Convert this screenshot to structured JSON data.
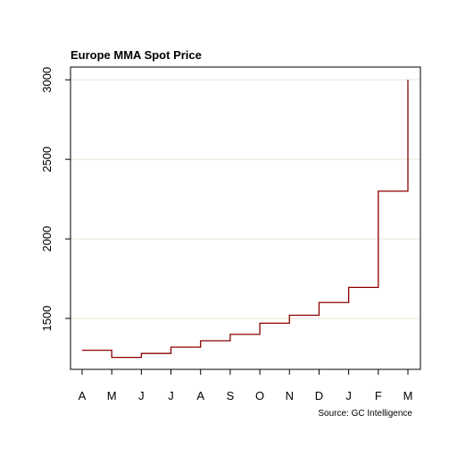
{
  "chart_data": {
    "type": "line",
    "step": true,
    "title": "Europe MMA Spot Price",
    "xlabel": "",
    "ylabel": "",
    "source": "Source: GC Intelligence",
    "categories": [
      "A",
      "M",
      "J",
      "J",
      "A",
      "S",
      "O",
      "N",
      "D",
      "J",
      "F",
      "M"
    ],
    "series": [
      {
        "values": [
          1300,
          1255,
          1280,
          1320,
          1360,
          1400,
          1470,
          1520,
          1600,
          1695,
          2300,
          3000
        ]
      }
    ],
    "yticks": [
      1500,
      2000,
      2500,
      3000
    ],
    "ylim": [
      1180,
      3080
    ],
    "grid": true,
    "line_color": "#8b0000",
    "grid_color": "#e8e8d8"
  }
}
